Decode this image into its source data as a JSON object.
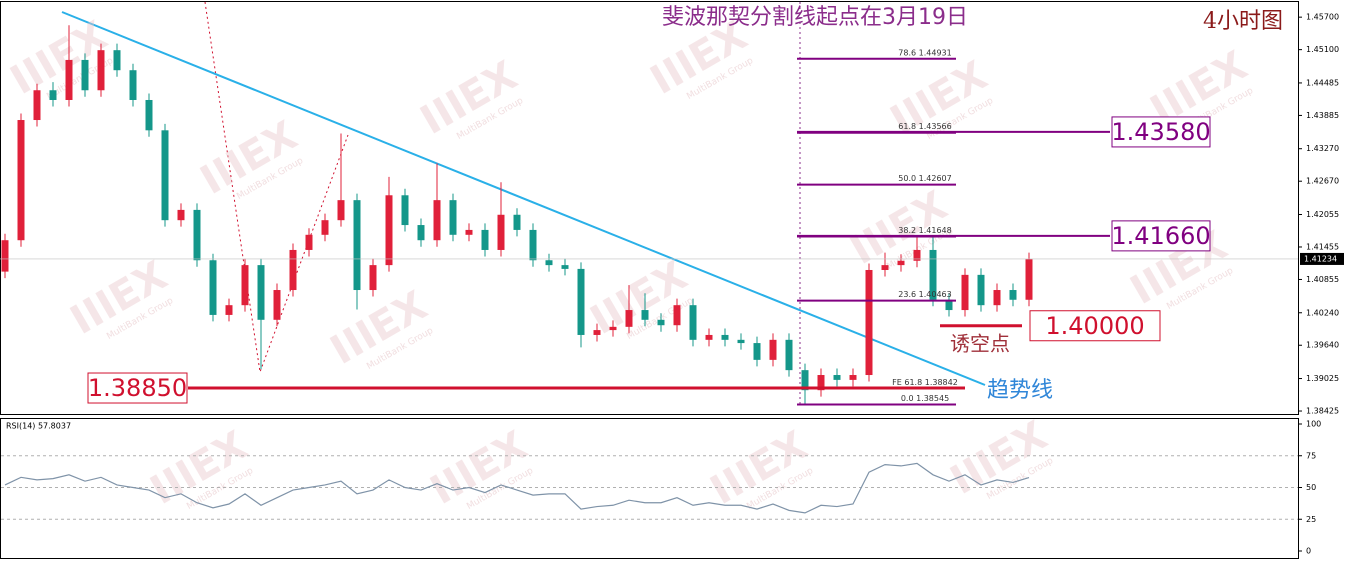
{
  "chart_data": [
    {
      "type": "candlestick",
      "title": "斐波那契分割线起点在3月19日",
      "timeframe": "4小时图",
      "trendline_label": "趋势线",
      "trap_label": "诱空点",
      "watermark": [
        "IIIEX",
        "MultiBank Group"
      ],
      "up_color": "#e0203a",
      "down_color": "#14978a",
      "ylim": [
        1.3837,
        1.4598
      ],
      "yticks": [
        {
          "value": 1.457,
          "label": "1.45700"
        },
        {
          "value": 1.451,
          "label": "1.45100"
        },
        1.44485,
        1.43885,
        {
          "value": 1.4327,
          "label": "1.43270"
        },
        {
          "value": 1.4267,
          "label": "1.42670"
        },
        1.42055,
        1.41455,
        1.40855,
        {
          "value": 1.4024,
          "label": "1.40240"
        },
        {
          "value": 1.3964,
          "label": "1.39640"
        },
        1.39025,
        1.38425
      ],
      "last_price": 1.41234,
      "open": [
        1.41,
        1.4158,
        1.438,
        1.4435,
        1.4417,
        1.4491,
        1.4435,
        1.4509,
        1.4472,
        1.4417,
        1.4361,
        1.4195,
        1.4214,
        1.4121,
        1.402,
        1.4038,
        1.4112,
        1.4011,
        1.4066,
        1.414,
        1.4168,
        1.4195,
        1.4232,
        1.4066,
        1.4112,
        1.4241,
        1.4186,
        1.4158,
        1.4232,
        1.4168,
        1.4177,
        1.414,
        1.4205,
        1.4177,
        1.4121,
        1.4112,
        1.4105,
        1.3983,
        1.3992,
        1.3998,
        1.4029,
        1.4011,
        1.4001,
        1.4038,
        1.3974,
        1.3983,
        1.3974,
        1.3968,
        1.3937,
        1.3974,
        1.3918,
        1.3881,
        1.3909,
        1.39,
        1.3909,
        1.4103,
        1.4112,
        1.412,
        1.414,
        1.4048,
        1.4029,
        1.4094,
        1.4038,
        1.4066,
        1.4048
      ],
      "high": [
        1.417,
        1.4392,
        1.4447,
        1.445,
        1.4555,
        1.4503,
        1.4521,
        1.4521,
        1.4484,
        1.4429,
        1.4373,
        1.4226,
        1.4226,
        1.4133,
        1.405,
        1.4124,
        1.4124,
        1.4078,
        1.4152,
        1.418,
        1.4207,
        1.4355,
        1.4244,
        1.4124,
        1.4275,
        1.4253,
        1.4198,
        1.43,
        1.4244,
        1.4189,
        1.4189,
        1.4265,
        1.4217,
        1.4189,
        1.4133,
        1.4124,
        1.4117,
        1.4004,
        1.401,
        1.4075,
        1.406,
        1.4023,
        1.405,
        1.405,
        1.3995,
        1.3995,
        1.3986,
        1.398,
        1.3986,
        1.3986,
        1.393,
        1.3921,
        1.3921,
        1.3921,
        1.4115,
        1.4135,
        1.4132,
        1.4165,
        1.4165,
        1.406,
        1.4106,
        1.4106,
        1.4078,
        1.4078,
        1.4135
      ],
      "low": [
        1.4088,
        1.4146,
        1.4368,
        1.4405,
        1.4405,
        1.4423,
        1.4423,
        1.446,
        1.4405,
        1.4349,
        1.4183,
        1.4183,
        1.4109,
        1.4008,
        1.4008,
        1.4026,
        1.392,
        1.3999,
        1.4054,
        1.4128,
        1.4156,
        1.4183,
        1.403,
        1.4054,
        1.41,
        1.4174,
        1.4146,
        1.4146,
        1.4156,
        1.4156,
        1.4128,
        1.4128,
        1.4165,
        1.4109,
        1.41,
        1.4093,
        1.396,
        1.3971,
        1.398,
        1.3986,
        1.3999,
        1.3989,
        1.3989,
        1.3962,
        1.3962,
        1.3962,
        1.3956,
        1.3925,
        1.3925,
        1.3906,
        1.3854,
        1.3869,
        1.3888,
        1.3888,
        1.3897,
        1.4091,
        1.41,
        1.4108,
        1.4036,
        1.4017,
        1.4017,
        1.4026,
        1.4026,
        1.4036,
        1.4036
      ],
      "close": [
        1.4158,
        1.438,
        1.4435,
        1.4417,
        1.4491,
        1.4435,
        1.4509,
        1.4472,
        1.4417,
        1.4361,
        1.4195,
        1.4214,
        1.4121,
        1.402,
        1.4038,
        1.4112,
        1.4011,
        1.4066,
        1.414,
        1.4168,
        1.4195,
        1.4232,
        1.4066,
        1.4112,
        1.4241,
        1.4186,
        1.4158,
        1.4232,
        1.4168,
        1.4177,
        1.414,
        1.4205,
        1.4177,
        1.4121,
        1.4112,
        1.4105,
        1.3983,
        1.3992,
        1.3998,
        1.4029,
        1.4011,
        1.4001,
        1.4038,
        1.3974,
        1.3983,
        1.3974,
        1.3968,
        1.3937,
        1.3974,
        1.3918,
        1.3881,
        1.3909,
        1.39,
        1.3909,
        1.4103,
        1.4112,
        1.412,
        1.414,
        1.4048,
        1.4029,
        1.4094,
        1.4038,
        1.4066,
        1.4048,
        1.4123
      ],
      "fib_levels": [
        {
          "value": 1.44931,
          "label": "78.6  1.44931"
        },
        {
          "value": 1.43566,
          "label": "61.8  1.43566"
        },
        {
          "value": 1.42607,
          "label": "50.0  1.42607"
        },
        {
          "value": 1.41648,
          "label": "38.2  1.41648"
        },
        {
          "value": 1.40463,
          "label": "23.6  1.40463"
        },
        {
          "value": 1.38842,
          "label": "FE 61.8  1.38842"
        },
        {
          "value": 1.38545,
          "label": "0.0  1.38545"
        }
      ],
      "levels": [
        {
          "value": 1.4358,
          "label": "1.43580",
          "color": "#800080"
        },
        {
          "value": 1.4166,
          "label": "1.41660",
          "color": "#800080"
        },
        {
          "value": 1.4,
          "label": "1.40000",
          "color": "#d0102e"
        },
        {
          "value": 1.3885,
          "label": "1.38850",
          "color": "#d0102e"
        }
      ]
    },
    {
      "type": "line",
      "label": "RSI(14) 57.8037",
      "color": "#7f93a8",
      "ylim": [
        0,
        100
      ],
      "yticks": [
        100,
        75,
        50,
        25,
        0
      ],
      "grid_values": [
        75,
        50,
        25
      ],
      "values": [
        52,
        58,
        56,
        57,
        60,
        55,
        58,
        52,
        50,
        48,
        42,
        45,
        38,
        34,
        37,
        45,
        36,
        42,
        48,
        50,
        52,
        55,
        45,
        48,
        56,
        50,
        48,
        53,
        48,
        50,
        46,
        52,
        48,
        44,
        45,
        45,
        33,
        35,
        36,
        40,
        38,
        38,
        42,
        36,
        38,
        36,
        36,
        33,
        37,
        32,
        30,
        36,
        35,
        37,
        62,
        68,
        67,
        69,
        60,
        55,
        60,
        52,
        56,
        54,
        57.8037
      ]
    }
  ]
}
